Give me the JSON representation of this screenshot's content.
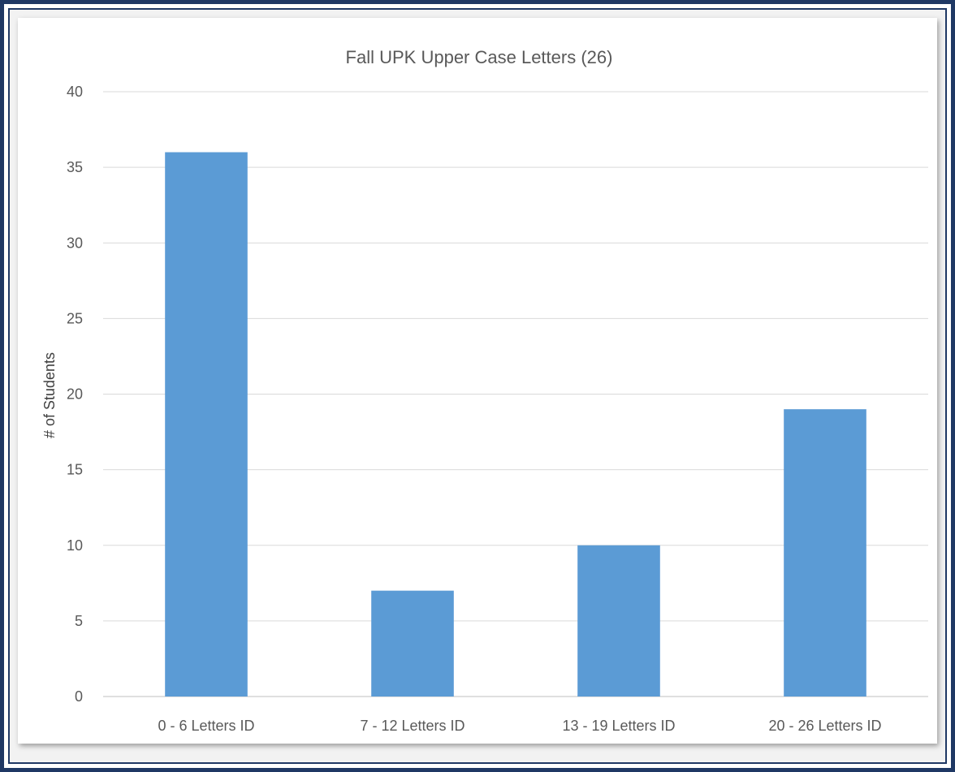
{
  "chart_data": {
    "type": "bar",
    "title": "Fall UPK Upper Case Letters (26)",
    "xlabel": "",
    "ylabel": "# of Students",
    "categories": [
      "0 - 6 Letters ID",
      "7 - 12 Letters ID",
      "13 - 19 Letters ID",
      "20 - 26 Letters ID"
    ],
    "values": [
      36,
      7,
      10,
      19
    ],
    "ylim": [
      0,
      40
    ],
    "yticks": [
      0,
      5,
      10,
      15,
      20,
      25,
      30,
      35,
      40
    ],
    "grid": true,
    "legend": "none",
    "bar_color": "#5b9bd5"
  }
}
